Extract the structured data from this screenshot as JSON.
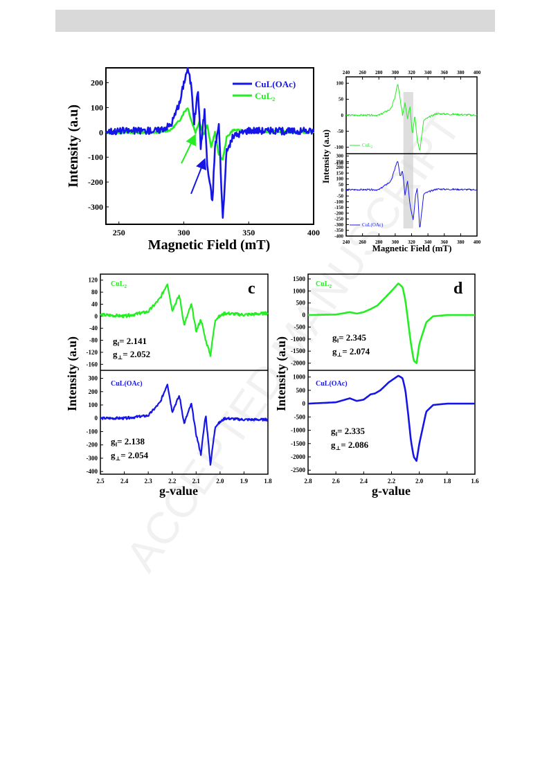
{
  "header_bar": {
    "color": "#d9d9d9"
  },
  "watermark": "ACCEPTED MANUSCRIPT",
  "colors": {
    "blue": "#1515e6",
    "green": "#22ee22"
  },
  "chart_data": [
    {
      "id": "a",
      "type": "line",
      "xlabel": "Magnetic Field (mT)",
      "ylabel": "Intensity (a.u)",
      "xlim": [
        240,
        400
      ],
      "ylim": [
        -370,
        260
      ],
      "xticks": [
        250,
        300,
        350,
        400
      ],
      "yticks": [
        200,
        100,
        0,
        -100,
        -200,
        -300
      ],
      "legend": {
        "position": "top-right"
      },
      "series": [
        {
          "name": "CuL(OAc)",
          "color": "#1515e6",
          "x": [
            240,
            280,
            290,
            297,
            300,
            303,
            306,
            308,
            311,
            313,
            316,
            318,
            322,
            324,
            327,
            330,
            333,
            338,
            350,
            370,
            400
          ],
          "y": [
            5,
            8,
            30,
            120,
            200,
            260,
            180,
            40,
            175,
            -60,
            90,
            -130,
            -280,
            -60,
            30,
            -350,
            -80,
            -15,
            10,
            5,
            5
          ]
        },
        {
          "name": "CuL2",
          "legend_sub": "2",
          "color": "#22ee22",
          "x": [
            240,
            280,
            290,
            297,
            300,
            303,
            306,
            309,
            312,
            315,
            318,
            321,
            324,
            327,
            330,
            333,
            338,
            350,
            400
          ],
          "y": [
            0,
            0,
            10,
            50,
            80,
            100,
            45,
            0,
            45,
            -10,
            30,
            -60,
            0,
            -90,
            -110,
            -20,
            10,
            5,
            0
          ]
        }
      ],
      "arrows": [
        {
          "color": "#22ee22"
        },
        {
          "color": "#1515e6"
        }
      ]
    },
    {
      "id": "b-top",
      "type": "line",
      "xlabel": "",
      "ylabel": "Intensity (a.u)",
      "xlim": [
        240,
        400
      ],
      "ylim": [
        -120,
        120
      ],
      "xticks": [
        240,
        260,
        280,
        300,
        320,
        340,
        360,
        380,
        400
      ],
      "yticks": [
        100,
        50,
        0,
        -50,
        -100,
        -150
      ],
      "legend": {
        "position": "bottom-left"
      },
      "series": [
        {
          "name": "CuL2",
          "legend_sub": "2",
          "color": "#22ee22",
          "x": [
            240,
            280,
            295,
            300,
            303,
            306,
            309,
            312,
            315,
            318,
            321,
            324,
            327,
            330,
            335,
            350,
            400
          ],
          "y": [
            0,
            0,
            20,
            60,
            100,
            50,
            0,
            40,
            -10,
            30,
            -60,
            0,
            -80,
            -110,
            -15,
            5,
            0
          ]
        }
      ]
    },
    {
      "id": "b-bottom",
      "type": "line",
      "xlabel": "Magnetic Field (mT)",
      "ylabel": "",
      "xlim": [
        240,
        400
      ],
      "ylim": [
        -400,
        320
      ],
      "xticks": [
        240,
        260,
        280,
        300,
        320,
        340,
        360,
        380,
        400
      ],
      "yticks": [
        300,
        250,
        200,
        150,
        100,
        50,
        0,
        -50,
        -100,
        -150,
        -200,
        -250,
        -300,
        -350,
        -400
      ],
      "legend": {
        "position": "bottom-left"
      },
      "series": [
        {
          "name": "CuL(OAc)",
          "color": "#1515e6",
          "x": [
            240,
            280,
            295,
            300,
            303,
            306,
            309,
            312,
            315,
            318,
            322,
            325,
            327,
            330,
            335,
            350,
            400
          ],
          "y": [
            5,
            5,
            80,
            200,
            260,
            120,
            170,
            -40,
            90,
            -120,
            -260,
            -40,
            20,
            -340,
            -30,
            10,
            5
          ]
        }
      ],
      "highlight_x": [
        310,
        322
      ]
    },
    {
      "id": "c-top",
      "type": "line",
      "label": "c",
      "xlabel": "",
      "ylabel": "Intensity (a.u)",
      "xlim": [
        2.5,
        1.8
      ],
      "ylim": [
        -180,
        140
      ],
      "yticks": [
        120,
        80,
        40,
        0,
        -40,
        -80,
        -120,
        -160
      ],
      "series_label": "CuL2",
      "series": [
        {
          "name": "CuL2",
          "color": "#22ee22",
          "x": [
            2.5,
            2.4,
            2.3,
            2.25,
            2.22,
            2.2,
            2.17,
            2.15,
            2.12,
            2.1,
            2.08,
            2.06,
            2.04,
            2.02,
            1.98,
            1.9,
            1.8
          ],
          "y": [
            5,
            0,
            15,
            60,
            110,
            20,
            70,
            -30,
            40,
            -50,
            -10,
            -80,
            -130,
            -10,
            10,
            5,
            10
          ]
        }
      ],
      "g_parallel": {
        "label": "g",
        "sub": "‖",
        "value": "= 2.141"
      },
      "g_perp": {
        "label": "g",
        "sub": "⊥",
        "value": "= 2.052"
      }
    },
    {
      "id": "c-bottom",
      "type": "line",
      "xlabel": "g-value",
      "ylabel": "",
      "xlim": [
        2.5,
        1.8
      ],
      "ylim": [
        -420,
        360
      ],
      "xticks": [
        2.5,
        2.4,
        2.3,
        2.2,
        2.1,
        2.0,
        1.9,
        1.8
      ],
      "yticks": [
        300,
        200,
        100,
        0,
        -100,
        -200,
        -300,
        -400
      ],
      "series_label": "CuL(OAc)",
      "series": [
        {
          "name": "CuL(OAc)",
          "color": "#1515e6",
          "x": [
            2.5,
            2.4,
            2.3,
            2.25,
            2.22,
            2.2,
            2.17,
            2.15,
            2.12,
            2.1,
            2.08,
            2.06,
            2.04,
            2.02,
            1.98,
            1.9,
            1.8
          ],
          "y": [
            0,
            0,
            20,
            120,
            260,
            50,
            170,
            -40,
            110,
            -120,
            -270,
            30,
            -350,
            -60,
            0,
            -10,
            -10
          ]
        }
      ],
      "g_parallel": {
        "label": "g",
        "sub": "‖",
        "value": "= 2.138"
      },
      "g_perp": {
        "label": "g",
        "sub": "⊥",
        "value": "= 2.054"
      }
    },
    {
      "id": "d-top",
      "type": "line",
      "label": "d",
      "xlabel": "",
      "ylabel": "Intensity (a.u)",
      "xlim": [
        2.8,
        1.6
      ],
      "ylim": [
        -2300,
        1700
      ],
      "yticks": [
        1500,
        1000,
        500,
        0,
        -500,
        -1000,
        -1500,
        -2000
      ],
      "series_label": "CuL2",
      "series": [
        {
          "name": "CuL2",
          "color": "#22ee22",
          "x": [
            2.8,
            2.6,
            2.5,
            2.45,
            2.4,
            2.35,
            2.3,
            2.25,
            2.2,
            2.15,
            2.12,
            2.1,
            2.08,
            2.06,
            2.04,
            2.02,
            2.0,
            1.95,
            1.9,
            1.8,
            1.6
          ],
          "y": [
            0,
            20,
            120,
            60,
            120,
            250,
            400,
            700,
            1000,
            1320,
            1150,
            600,
            -300,
            -1200,
            -1900,
            -2000,
            -1200,
            -300,
            -50,
            0,
            0
          ]
        }
      ],
      "g_parallel": {
        "label": "g",
        "sub": "‖",
        "value": "= 2.345"
      },
      "g_perp": {
        "label": "g",
        "sub": "⊥",
        "value": "= 2.074"
      }
    },
    {
      "id": "d-bottom",
      "type": "line",
      "xlabel": "g-value",
      "ylabel": "",
      "xlim": [
        2.8,
        1.6
      ],
      "ylim": [
        -2650,
        1250
      ],
      "xticks": [
        2.8,
        2.6,
        2.4,
        2.2,
        2.0,
        1.8,
        1.6
      ],
      "yticks": [
        1000,
        500,
        0,
        -500,
        -1000,
        -1500,
        -2000,
        -2500
      ],
      "series_label": "CuL(OAc)",
      "series": [
        {
          "name": "CuL(OAc)",
          "color": "#1515e6",
          "x": [
            2.8,
            2.6,
            2.5,
            2.45,
            2.4,
            2.35,
            2.32,
            2.28,
            2.22,
            2.15,
            2.12,
            2.1,
            2.08,
            2.06,
            2.04,
            2.02,
            2.0,
            1.95,
            1.9,
            1.8,
            1.6
          ],
          "y": [
            0,
            50,
            200,
            100,
            150,
            350,
            380,
            500,
            800,
            1050,
            950,
            500,
            -400,
            -1400,
            -2000,
            -2150,
            -1500,
            -300,
            -50,
            0,
            0
          ]
        }
      ],
      "g_parallel": {
        "label": "g",
        "sub": "‖",
        "value": "= 2.335"
      },
      "g_perp": {
        "label": "g",
        "sub": "⊥",
        "value": "= 2.086"
      }
    }
  ]
}
